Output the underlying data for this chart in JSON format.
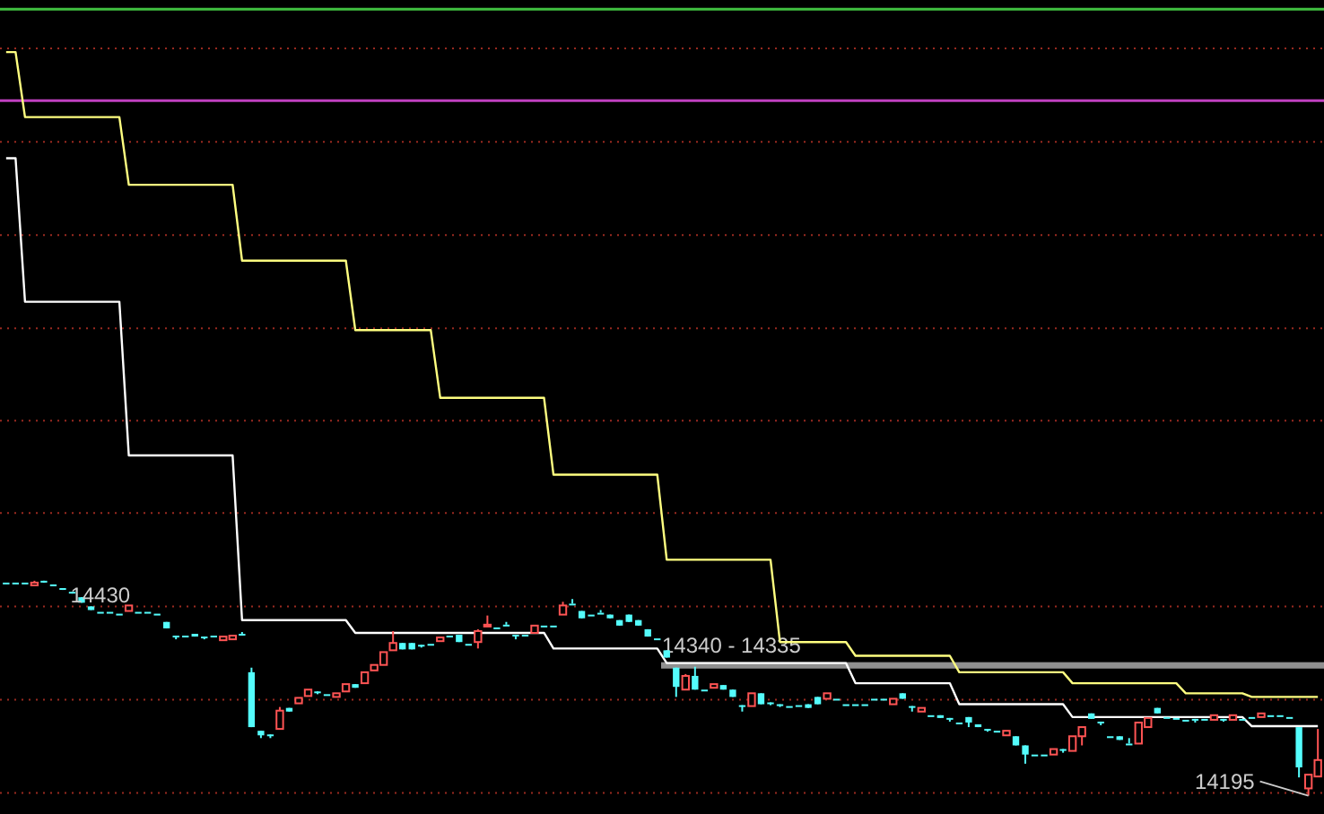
{
  "chart_data": {
    "type": "candlestick",
    "categories": [
      null,
      null,
      null,
      null,
      null,
      null,
      null,
      null,
      null,
      null,
      null,
      null,
      null,
      null,
      null,
      null,
      null,
      null,
      null,
      null,
      null,
      null,
      null,
      null,
      null,
      null,
      null,
      null,
      null,
      null,
      null,
      null,
      null,
      null,
      null,
      null,
      null,
      null,
      null,
      null,
      null,
      null,
      null,
      null,
      null,
      null,
      null,
      null,
      null,
      null,
      null,
      null,
      null,
      null,
      null,
      null,
      null,
      null,
      null,
      null,
      null,
      null,
      null,
      null,
      null,
      null,
      null,
      null,
      null,
      null,
      null,
      null,
      null,
      null,
      null,
      null,
      null,
      null,
      null,
      null,
      null,
      null,
      null,
      null,
      null,
      null,
      null,
      null,
      null,
      null,
      null,
      null,
      null,
      null,
      null,
      null,
      null,
      null,
      null,
      null,
      null,
      null,
      null,
      null,
      null,
      null,
      null,
      null,
      null,
      null,
      null,
      null,
      null,
      null,
      null,
      null,
      null,
      null,
      null,
      null,
      null,
      null,
      null,
      null,
      null,
      null,
      null,
      null,
      null,
      null,
      null,
      null,
      null,
      null,
      null,
      null,
      null,
      null,
      null,
      null
    ],
    "ohlc": [
      [
        14428,
        14428,
        14428,
        14428
      ],
      [
        14428,
        14428,
        14428,
        14428
      ],
      [
        14428,
        14428,
        14428,
        14428
      ],
      [
        14425,
        14430,
        14425,
        14428
      ],
      [
        14430,
        14430,
        14428,
        14428
      ],
      [
        14426,
        14426,
        14424,
        14424
      ],
      [
        14422,
        14422,
        14420,
        14420
      ],
      [
        14418,
        14418,
        14416,
        14416
      ],
      [
        14412,
        14412,
        14406,
        14406
      ],
      [
        14402,
        14402,
        14398,
        14398
      ],
      [
        14396,
        14396,
        14396,
        14396
      ],
      [
        14396,
        14396,
        14396,
        14396
      ],
      [
        14394,
        14394,
        14394,
        14394
      ],
      [
        14397,
        14403,
        14397,
        14403
      ],
      [
        14396,
        14396,
        14396,
        14396
      ],
      [
        14396,
        14396,
        14396,
        14396
      ],
      [
        14394,
        14394,
        14394,
        14394
      ],
      [
        14385,
        14385,
        14378,
        14378
      ],
      [
        14370,
        14370,
        14366,
        14370
      ],
      [
        14370,
        14370,
        14370,
        14370
      ],
      [
        14372,
        14372,
        14369,
        14369
      ],
      [
        14369,
        14369,
        14366,
        14369
      ],
      [
        14370,
        14370,
        14370,
        14370
      ],
      [
        14365,
        14369,
        14365,
        14369
      ],
      [
        14366,
        14370,
        14366,
        14370
      ],
      [
        14372,
        14374,
        14372,
        14372
      ],
      [
        14330,
        14335,
        14270,
        14270
      ],
      [
        14266,
        14266,
        14258,
        14261
      ],
      [
        14262,
        14262,
        14258,
        14262
      ],
      [
        14268,
        14292,
        14268,
        14288
      ],
      [
        14291,
        14291,
        14287,
        14287
      ],
      [
        14296,
        14302,
        14296,
        14302
      ],
      [
        14304,
        14311,
        14304,
        14311
      ],
      [
        14309,
        14309,
        14306,
        14309
      ],
      [
        14306,
        14306,
        14306,
        14306
      ],
      [
        14303,
        14307,
        14303,
        14307
      ],
      [
        14309,
        14317,
        14309,
        14317
      ],
      [
        14317,
        14317,
        14313,
        14313
      ],
      [
        14318,
        14330,
        14318,
        14330
      ],
      [
        14332,
        14338,
        14332,
        14338
      ],
      [
        14338,
        14352,
        14338,
        14352
      ],
      [
        14354,
        14375,
        14354,
        14362
      ],
      [
        14362,
        14362,
        14355,
        14355
      ],
      [
        14362,
        14362,
        14355,
        14355
      ],
      [
        14360,
        14360,
        14357,
        14360
      ],
      [
        14361,
        14361,
        14361,
        14361
      ],
      [
        14364,
        14368,
        14364,
        14368
      ],
      [
        14370,
        14370,
        14370,
        14370
      ],
      [
        14371,
        14371,
        14363,
        14363
      ],
      [
        14361,
        14361,
        14361,
        14361
      ],
      [
        14363,
        14377,
        14356,
        14375
      ],
      [
        14380,
        14392,
        14380,
        14382
      ],
      [
        14379,
        14379,
        14379,
        14379
      ],
      [
        14382,
        14385,
        14382,
        14382
      ],
      [
        14371,
        14371,
        14366,
        14371
      ],
      [
        14371,
        14371,
        14371,
        14371
      ],
      [
        14373,
        14381,
        14373,
        14381
      ],
      [
        14381,
        14381,
        14381,
        14381
      ],
      [
        14381,
        14381,
        14381,
        14381
      ],
      [
        14393,
        14407,
        14393,
        14403
      ],
      [
        14405,
        14410,
        14405,
        14405
      ],
      [
        14397,
        14397,
        14389,
        14389
      ],
      [
        14393,
        14393,
        14393,
        14393
      ],
      [
        14395,
        14398,
        14395,
        14395
      ],
      [
        14393,
        14393,
        14389,
        14389
      ],
      [
        14387,
        14387,
        14381,
        14381
      ],
      [
        14393,
        14393,
        14385,
        14385
      ],
      [
        14387,
        14387,
        14381,
        14381
      ],
      [
        14377,
        14377,
        14369,
        14369
      ],
      [
        14367,
        14367,
        14367,
        14367
      ],
      [
        14354,
        14354,
        14346,
        14346
      ],
      [
        14335,
        14335,
        14303,
        14314
      ],
      [
        14311,
        14328,
        14311,
        14326
      ],
      [
        14326,
        14336,
        14311,
        14311
      ],
      [
        14311,
        14311,
        14311,
        14311
      ],
      [
        14313,
        14317,
        14313,
        14317
      ],
      [
        14316,
        14316,
        14311,
        14311
      ],
      [
        14311,
        14311,
        14303,
        14303
      ],
      [
        14294,
        14294,
        14287,
        14294
      ],
      [
        14293,
        14307,
        14293,
        14307
      ],
      [
        14307,
        14307,
        14295,
        14295
      ],
      [
        14297,
        14297,
        14294,
        14297
      ],
      [
        14295,
        14295,
        14292,
        14295
      ],
      [
        14293,
        14293,
        14293,
        14293
      ],
      [
        14294,
        14294,
        14294,
        14294
      ],
      [
        14295,
        14295,
        14291,
        14291
      ],
      [
        14303,
        14303,
        14295,
        14295
      ],
      [
        14301,
        14307,
        14301,
        14307
      ],
      [
        14301,
        14301,
        14301,
        14301
      ],
      [
        14295,
        14295,
        14295,
        14295
      ],
      [
        14295,
        14295,
        14295,
        14295
      ],
      [
        14295,
        14295,
        14295,
        14295
      ],
      [
        14301,
        14301,
        14301,
        14301
      ],
      [
        14301,
        14301,
        14301,
        14301
      ],
      [
        14295,
        14301,
        14295,
        14301
      ],
      [
        14307,
        14307,
        14301,
        14301
      ],
      [
        14293,
        14293,
        14287,
        14293
      ],
      [
        14287,
        14291,
        14287,
        14291
      ],
      [
        14283,
        14283,
        14283,
        14283
      ],
      [
        14283,
        14283,
        14280,
        14280
      ],
      [
        14280,
        14280,
        14276,
        14280
      ],
      [
        14275,
        14275,
        14275,
        14275
      ],
      [
        14281,
        14281,
        14270,
        14275
      ],
      [
        14273,
        14273,
        14270,
        14270
      ],
      [
        14268,
        14268,
        14265,
        14268
      ],
      [
        14266,
        14266,
        14266,
        14266
      ],
      [
        14261,
        14266,
        14261,
        14266
      ],
      [
        14260,
        14260,
        14250,
        14250
      ],
      [
        14250,
        14250,
        14230,
        14240
      ],
      [
        14240,
        14240,
        14240,
        14240
      ],
      [
        14240,
        14240,
        14240,
        14240
      ],
      [
        14240,
        14246,
        14240,
        14246
      ],
      [
        14246,
        14246,
        14242,
        14246
      ],
      [
        14244,
        14260,
        14244,
        14260
      ],
      [
        14260,
        14270,
        14250,
        14270
      ],
      [
        14285,
        14285,
        14279,
        14279
      ],
      [
        14276,
        14276,
        14272,
        14276
      ],
      [
        14260,
        14260,
        14260,
        14260
      ],
      [
        14260,
        14260,
        14256,
        14256
      ],
      [
        14252,
        14258,
        14252,
        14252
      ],
      [
        14252,
        14275,
        14252,
        14275
      ],
      [
        14270,
        14280,
        14270,
        14280
      ],
      [
        14291,
        14291,
        14285,
        14285
      ],
      [
        14281,
        14281,
        14281,
        14281
      ],
      [
        14280,
        14280,
        14280,
        14280
      ],
      [
        14278,
        14278,
        14278,
        14278
      ],
      [
        14279,
        14279,
        14275,
        14279
      ],
      [
        14279,
        14279,
        14279,
        14279
      ],
      [
        14278,
        14283,
        14278,
        14283
      ],
      [
        14279,
        14279,
        14276,
        14279
      ],
      [
        14278,
        14283,
        14278,
        14283
      ],
      [
        14279,
        14279,
        14279,
        14279
      ],
      [
        14281,
        14281,
        14281,
        14281
      ],
      [
        14281,
        14285,
        14281,
        14285
      ],
      [
        14283,
        14283,
        14283,
        14283
      ],
      [
        14283,
        14283,
        14283,
        14283
      ],
      [
        14281,
        14281,
        14281,
        14281
      ],
      [
        14270,
        14270,
        14215,
        14226
      ],
      [
        14203,
        14218,
        14195,
        14218
      ],
      [
        14216,
        14268,
        14216,
        14234
      ]
    ],
    "colors": [
      "#54fcfc",
      "#54fcfc",
      "#54fcfc",
      "#ff5454",
      "#54fcfc",
      "#54fcfc",
      "#54fcfc",
      "#54fcfc",
      "#54fcfc",
      "#54fcfc",
      "#54fcfc",
      "#54fcfc",
      "#54fcfc",
      "#ff5454",
      "#54fcfc",
      "#54fcfc",
      "#54fcfc",
      "#54fcfc",
      "#54fcfc",
      "#54fcfc",
      "#54fcfc",
      "#54fcfc",
      "#54fcfc",
      "#ff5454",
      "#ff5454",
      "#54fcfc",
      "#54fcfc",
      "#54fcfc",
      "#54fcfc",
      "#ff5454",
      "#54fcfc",
      "#ff5454",
      "#ff5454",
      "#54fcfc",
      "#54fcfc",
      "#ff5454",
      "#ff5454",
      "#54fcfc",
      "#ff5454",
      "#ff5454",
      "#ff5454",
      "#ff5454",
      "#54fcfc",
      "#54fcfc",
      "#54fcfc",
      "#54fcfc",
      "#ff5454",
      "#54fcfc",
      "#54fcfc",
      "#54fcfc",
      "#ff5454",
      "#ff5454",
      "#54fcfc",
      "#54fcfc",
      "#54fcfc",
      "#54fcfc",
      "#ff5454",
      "#54fcfc",
      "#54fcfc",
      "#ff5454",
      "#54fcfc",
      "#54fcfc",
      "#54fcfc",
      "#54fcfc",
      "#54fcfc",
      "#54fcfc",
      "#54fcfc",
      "#54fcfc",
      "#54fcfc",
      "#54fcfc",
      "#54fcfc",
      "#54fcfc",
      "#ff5454",
      "#54fcfc",
      "#54fcfc",
      "#ff5454",
      "#54fcfc",
      "#54fcfc",
      "#54fcfc",
      "#ff5454",
      "#54fcfc",
      "#54fcfc",
      "#54fcfc",
      "#54fcfc",
      "#54fcfc",
      "#54fcfc",
      "#54fcfc",
      "#ff5454",
      "#54fcfc",
      "#54fcfc",
      "#54fcfc",
      "#54fcfc",
      "#54fcfc",
      "#54fcfc",
      "#ff5454",
      "#54fcfc",
      "#54fcfc",
      "#ff5454",
      "#54fcfc",
      "#54fcfc",
      "#54fcfc",
      "#54fcfc",
      "#54fcfc",
      "#54fcfc",
      "#54fcfc",
      "#54fcfc",
      "#ff5454",
      "#54fcfc",
      "#54fcfc",
      "#54fcfc",
      "#54fcfc",
      "#ff5454",
      "#54fcfc",
      "#ff5454",
      "#ff5454",
      "#54fcfc",
      "#54fcfc",
      "#54fcfc",
      "#54fcfc",
      "#54fcfc",
      "#ff5454",
      "#ff5454",
      "#54fcfc",
      "#54fcfc",
      "#54fcfc",
      "#54fcfc",
      "#54fcfc",
      "#54fcfc",
      "#ff5454",
      "#54fcfc",
      "#ff5454",
      "#54fcfc",
      "#54fcfc",
      "#ff5454",
      "#54fcfc",
      "#54fcfc",
      "#54fcfc",
      "#54fcfc",
      "#ff5454",
      "#ff5454"
    ],
    "series": [
      {
        "type": "line",
        "color": "#ffff80",
        "values": [
          15008,
          15008,
          14937,
          14937,
          14937,
          14937,
          14937,
          14937,
          14937,
          14937,
          14937,
          14937,
          14937,
          14863,
          14863,
          14863,
          14863,
          14863,
          14863,
          14863,
          14863,
          14863,
          14863,
          14863,
          14863,
          14780,
          14780,
          14780,
          14780,
          14780,
          14780,
          14780,
          14780,
          14780,
          14780,
          14780,
          14780,
          14704,
          14704,
          14704,
          14704,
          14704,
          14704,
          14704,
          14704,
          14704,
          14630,
          14630,
          14630,
          14630,
          14630,
          14630,
          14630,
          14630,
          14630,
          14630,
          14630,
          14630,
          14546,
          14546,
          14546,
          14546,
          14546,
          14546,
          14546,
          14546,
          14546,
          14546,
          14546,
          14546,
          14453,
          14453,
          14453,
          14453,
          14453,
          14453,
          14453,
          14453,
          14453,
          14453,
          14453,
          14453,
          14363,
          14363,
          14363,
          14363,
          14363,
          14363,
          14363,
          14363,
          14348,
          14348,
          14348,
          14348,
          14348,
          14348,
          14348,
          14348,
          14348,
          14348,
          14348,
          14330,
          14330,
          14330,
          14330,
          14330,
          14330,
          14330,
          14330,
          14330,
          14330,
          14330,
          14330,
          14318,
          14318,
          14318,
          14318,
          14318,
          14318,
          14318,
          14318,
          14318,
          14318,
          14318,
          14318,
          14307,
          14307,
          14307,
          14307,
          14307,
          14307,
          14307,
          14303,
          14303,
          14303,
          14303,
          14303,
          14303,
          14303,
          14303
        ]
      },
      {
        "type": "line",
        "color": "#ffffff",
        "values": [
          14892,
          14892,
          14735,
          14735,
          14735,
          14735,
          14735,
          14735,
          14735,
          14735,
          14735,
          14735,
          14735,
          14567,
          14567,
          14567,
          14567,
          14567,
          14567,
          14567,
          14567,
          14567,
          14567,
          14567,
          14567,
          14387,
          14387,
          14387,
          14387,
          14387,
          14387,
          14387,
          14387,
          14387,
          14387,
          14387,
          14387,
          14373,
          14373,
          14373,
          14373,
          14373,
          14373,
          14373,
          14373,
          14373,
          14373,
          14373,
          14373,
          14373,
          14373,
          14373,
          14373,
          14373,
          14373,
          14373,
          14373,
          14373,
          14356,
          14356,
          14356,
          14356,
          14356,
          14356,
          14356,
          14356,
          14356,
          14356,
          14356,
          14356,
          14340,
          14340,
          14340,
          14340,
          14340,
          14340,
          14340,
          14340,
          14340,
          14340,
          14340,
          14340,
          14340,
          14340,
          14340,
          14340,
          14340,
          14340,
          14340,
          14340,
          14318,
          14318,
          14318,
          14318,
          14318,
          14318,
          14318,
          14318,
          14318,
          14318,
          14318,
          14295,
          14295,
          14295,
          14295,
          14295,
          14295,
          14295,
          14295,
          14295,
          14295,
          14295,
          14295,
          14281,
          14281,
          14281,
          14281,
          14281,
          14281,
          14281,
          14281,
          14281,
          14281,
          14281,
          14281,
          14281,
          14281,
          14281,
          14281,
          14281,
          14281,
          14281,
          14271,
          14271,
          14271,
          14271,
          14271,
          14271,
          14271,
          14271
        ]
      }
    ],
    "ylim": [
      14175,
      15065
    ],
    "yticks": [
      {
        "value": 15012,
        "label": null
      },
      {
        "value": 14910,
        "label": null
      },
      {
        "value": 14808,
        "label": null
      },
      {
        "value": 14706,
        "label": null
      },
      {
        "value": 14605,
        "label": null
      },
      {
        "value": 14504,
        "label": null
      },
      {
        "value": 14402,
        "label": null
      },
      {
        "value": 14300,
        "label": null
      },
      {
        "value": 14198,
        "label": null
      }
    ],
    "grid": "y",
    "ref_lines": [
      {
        "axis": "y",
        "value": 15055,
        "color": "#40c040"
      },
      {
        "axis": "y",
        "value": 14955,
        "color": "#c040c0"
      }
    ],
    "bands": [
      {
        "axis": "y",
        "from": 14335,
        "to": 14340,
        "label": "14340 - 14335",
        "color": "#909090"
      }
    ],
    "annotations": [
      "14430",
      "14195"
    ]
  }
}
